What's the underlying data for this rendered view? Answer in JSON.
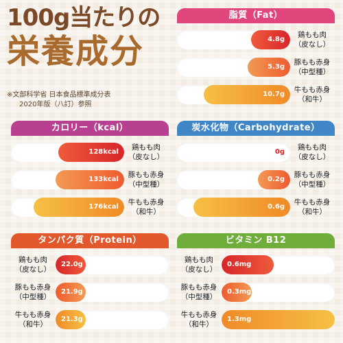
{
  "title": {
    "line1": "100g当たりの",
    "line2": "栄養成分"
  },
  "source": {
    "line1": "※文部科学省 日本食品標準成分表",
    "line2": "2020年版（八訂）参照"
  },
  "colors": {
    "fat": "#e0457b",
    "kcal": "#b84090",
    "carb": "#3f86c6",
    "protein": "#e2572c",
    "vitamin": "#6fae3a",
    "bar_red": [
      "#d7262a",
      "#ef5a3a"
    ],
    "bar_orange": [
      "#ee5b30",
      "#f39a54"
    ],
    "bar_amber": [
      "#f08a27",
      "#f6c044"
    ]
  },
  "chart_data": [
    {
      "type": "bar",
      "title": "脂質（Fat）",
      "categories": [
        "鶏もも肉\n（皮なし）",
        "豚もも赤身\n（中型種）",
        "牛もも赤身\n（和牛）"
      ],
      "values": [
        4.8,
        5.3,
        10.7
      ],
      "value_labels": [
        "4.8g",
        "5.3g",
        "10.7g"
      ],
      "unit": "g",
      "ylim": [
        0,
        14
      ]
    },
    {
      "type": "bar",
      "title": "カロリー（kcal）",
      "categories": [
        "鶏もも肉\n（皮なし）",
        "豚もも赤身\n（中型種）",
        "牛もも赤身\n（和牛）"
      ],
      "values": [
        128,
        133,
        176
      ],
      "value_labels": [
        "128kcal",
        "133kcal",
        "176kcal"
      ],
      "unit": "kcal",
      "ylim": [
        0,
        220
      ]
    },
    {
      "type": "bar",
      "title": "炭水化物（Carbohydrate）",
      "categories": [
        "鶏もも肉\n（皮なし）",
        "豚もも赤身\n（中型種）",
        "牛もも赤身\n（和牛）"
      ],
      "values": [
        0,
        0.2,
        0.6
      ],
      "value_labels": [
        "0g",
        "0.2g",
        "0.6g"
      ],
      "unit": "g",
      "ylim": [
        0,
        0.7
      ]
    },
    {
      "type": "bar",
      "title": "タンパク質（Protein）",
      "categories": [
        "鶏もも肉\n（皮なし）",
        "豚もも赤身\n（中型種）",
        "牛もも赤身\n（和牛）"
      ],
      "values": [
        22.0,
        21.9,
        21.3
      ],
      "value_labels": [
        "22.0g",
        "21.9g",
        "21.3g"
      ],
      "unit": "g",
      "ylim": [
        0,
        100
      ]
    },
    {
      "type": "bar",
      "title": "ビタミン B12",
      "categories": [
        "鶏もも肉\n（皮なし）",
        "豚もも赤身\n（中型種）",
        "牛もも赤身\n（和牛）"
      ],
      "values": [
        0.6,
        0.3,
        1.3
      ],
      "value_labels": [
        "0.6mg",
        "0.3mg",
        "1.3mg"
      ],
      "unit": "mg",
      "ylim": [
        0,
        1.3
      ]
    }
  ]
}
